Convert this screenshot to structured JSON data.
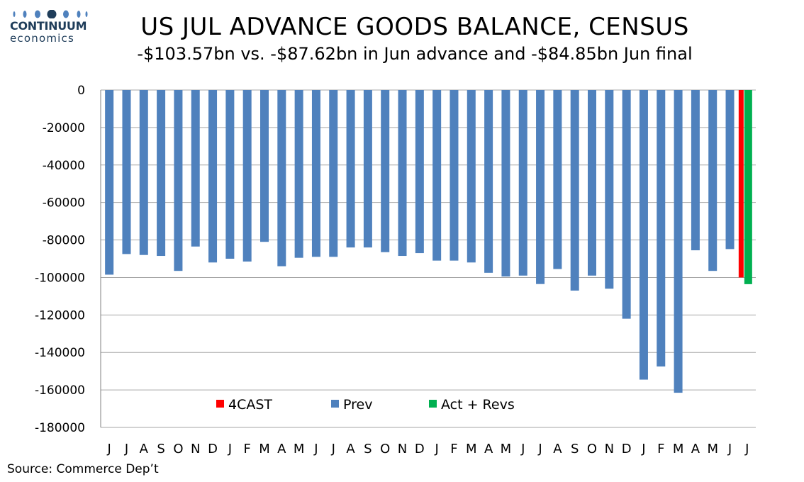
{
  "logo": {
    "name": "CONTINUUM",
    "sub": "economics"
  },
  "title": "US JUL ADVANCE GOODS BALANCE, CENSUS",
  "subtitle": "-$103.57bn vs. -$87.62bn in Jun advance and -$84.85bn Jun final",
  "source": "Source: Commerce Dep’t",
  "chart_data": {
    "type": "bar",
    "title": "US JUL ADVANCE GOODS BALANCE, CENSUS",
    "subtitle": "-$103.57bn vs. -$87.62bn in Jun advance and -$84.85bn Jun final",
    "ylim": [
      -180000,
      0
    ],
    "yticks": [
      0,
      -20000,
      -40000,
      -60000,
      -80000,
      -100000,
      -120000,
      -140000,
      -160000,
      -180000
    ],
    "grid": true,
    "legend_position": "bottom-center",
    "categories": [
      "J",
      "J",
      "A",
      "S",
      "O",
      "N",
      "D",
      "J",
      "F",
      "M",
      "A",
      "M",
      "J",
      "J",
      "A",
      "S",
      "O",
      "N",
      "D",
      "J",
      "F",
      "M",
      "A",
      "M",
      "J",
      "J",
      "A",
      "S",
      "O",
      "N",
      "D",
      "J",
      "F",
      "M",
      "A",
      "M",
      "J",
      "J"
    ],
    "series": [
      {
        "name": "Prev",
        "color": "#4f81bd",
        "values": [
          -98500,
          -87500,
          -88000,
          -88500,
          -96500,
          -83500,
          -92000,
          -90000,
          -91500,
          -81000,
          -94000,
          -89500,
          -89000,
          -89000,
          -84000,
          -84000,
          -86500,
          -88500,
          -87000,
          -91000,
          -91000,
          -92000,
          -97500,
          -99500,
          -99000,
          -103500,
          -95500,
          -107000,
          -99000,
          -106000,
          -122000,
          -154500,
          -147500,
          -161500,
          -85500,
          -96500,
          -84850,
          null
        ]
      },
      {
        "name": "4CAST",
        "color": "#ff0000",
        "values": [
          null,
          null,
          null,
          null,
          null,
          null,
          null,
          null,
          null,
          null,
          null,
          null,
          null,
          null,
          null,
          null,
          null,
          null,
          null,
          null,
          null,
          null,
          null,
          null,
          null,
          null,
          null,
          null,
          null,
          null,
          null,
          null,
          null,
          null,
          null,
          null,
          null,
          -100000
        ]
      },
      {
        "name": "Act + Revs",
        "color": "#00b050",
        "values": [
          null,
          null,
          null,
          null,
          null,
          null,
          null,
          null,
          null,
          null,
          null,
          null,
          null,
          null,
          null,
          null,
          null,
          null,
          null,
          null,
          null,
          null,
          null,
          null,
          null,
          null,
          null,
          null,
          null,
          null,
          null,
          null,
          null,
          null,
          null,
          null,
          null,
          -103570
        ]
      }
    ]
  }
}
